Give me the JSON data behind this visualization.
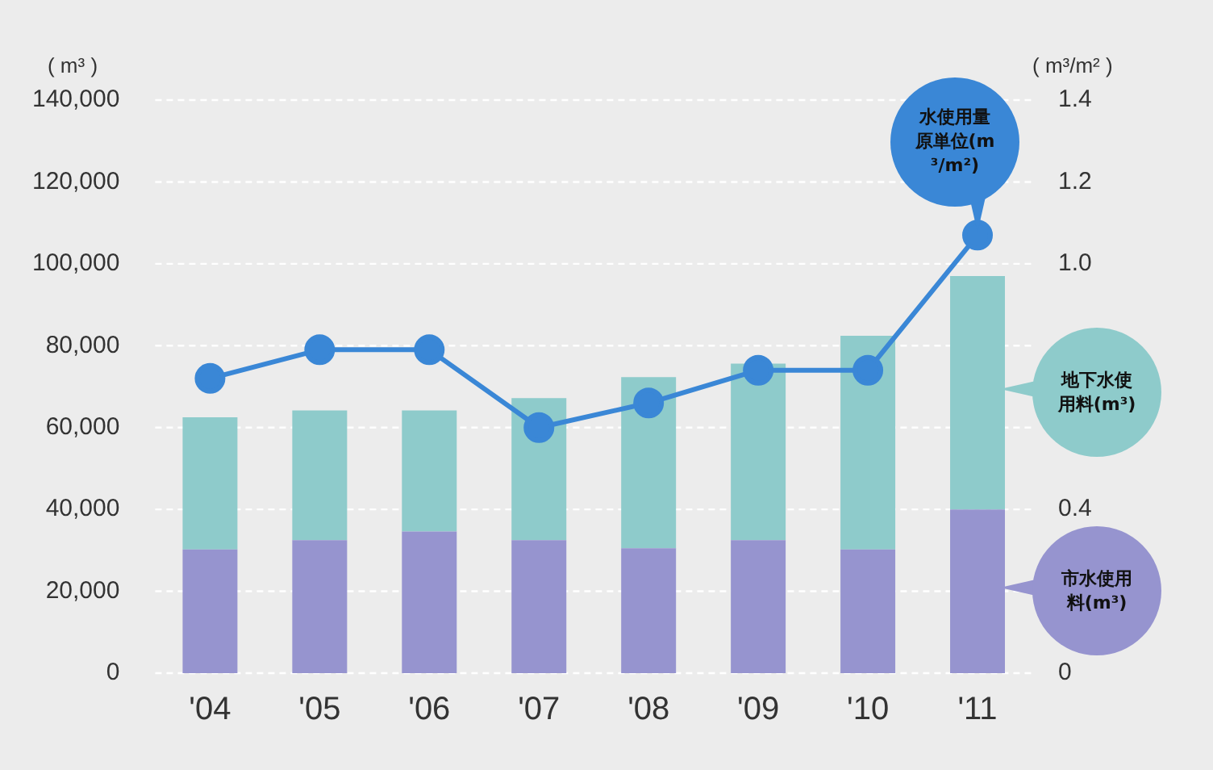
{
  "chart_data": {
    "type": "bar",
    "stacked": true,
    "ylabel": "( m³ )",
    "y2label": "( m³/m² )",
    "categories": [
      "'04",
      "'05",
      "'06",
      "'07",
      "'08",
      "'09",
      "'10",
      "'11"
    ],
    "series": [
      {
        "name": "市水使用料(m³)",
        "color": "#9694cf",
        "values": [
          30200,
          32500,
          34600,
          32500,
          30500,
          32500,
          30200,
          40000
        ]
      },
      {
        "name": "地下水使用料(m³)",
        "color": "#8ecbcb",
        "values": [
          32300,
          31700,
          29600,
          34700,
          41800,
          43100,
          52200,
          57000
        ]
      },
      {
        "name": "水使用量原単位(m³/m²)",
        "type": "line",
        "axis": "y2",
        "color": "#3a87d6",
        "values": [
          0.72,
          0.79,
          0.79,
          0.6,
          0.66,
          0.74,
          0.74,
          1.07
        ]
      }
    ],
    "ylim": [
      0,
      140000
    ],
    "yticks": [
      0,
      {
        "value": 20000,
        "label": "20,000"
      },
      {
        "value": 40000,
        "label": "40,000"
      },
      {
        "value": 60000,
        "label": "60,000"
      },
      {
        "value": 80000,
        "label": "80,000"
      },
      {
        "value": 100000,
        "label": "100,000"
      },
      {
        "value": 120000,
        "label": "120,000"
      },
      {
        "value": 140000,
        "label": "140,000"
      }
    ],
    "y2lim": [
      0,
      1.4
    ],
    "y2ticks": [
      0,
      0.4,
      {
        "value": 1,
        "label": "1.0"
      },
      1.2,
      1.4
    ],
    "grid": "y",
    "legend": "right",
    "marker": "circle",
    "line_style": "solid"
  }
}
